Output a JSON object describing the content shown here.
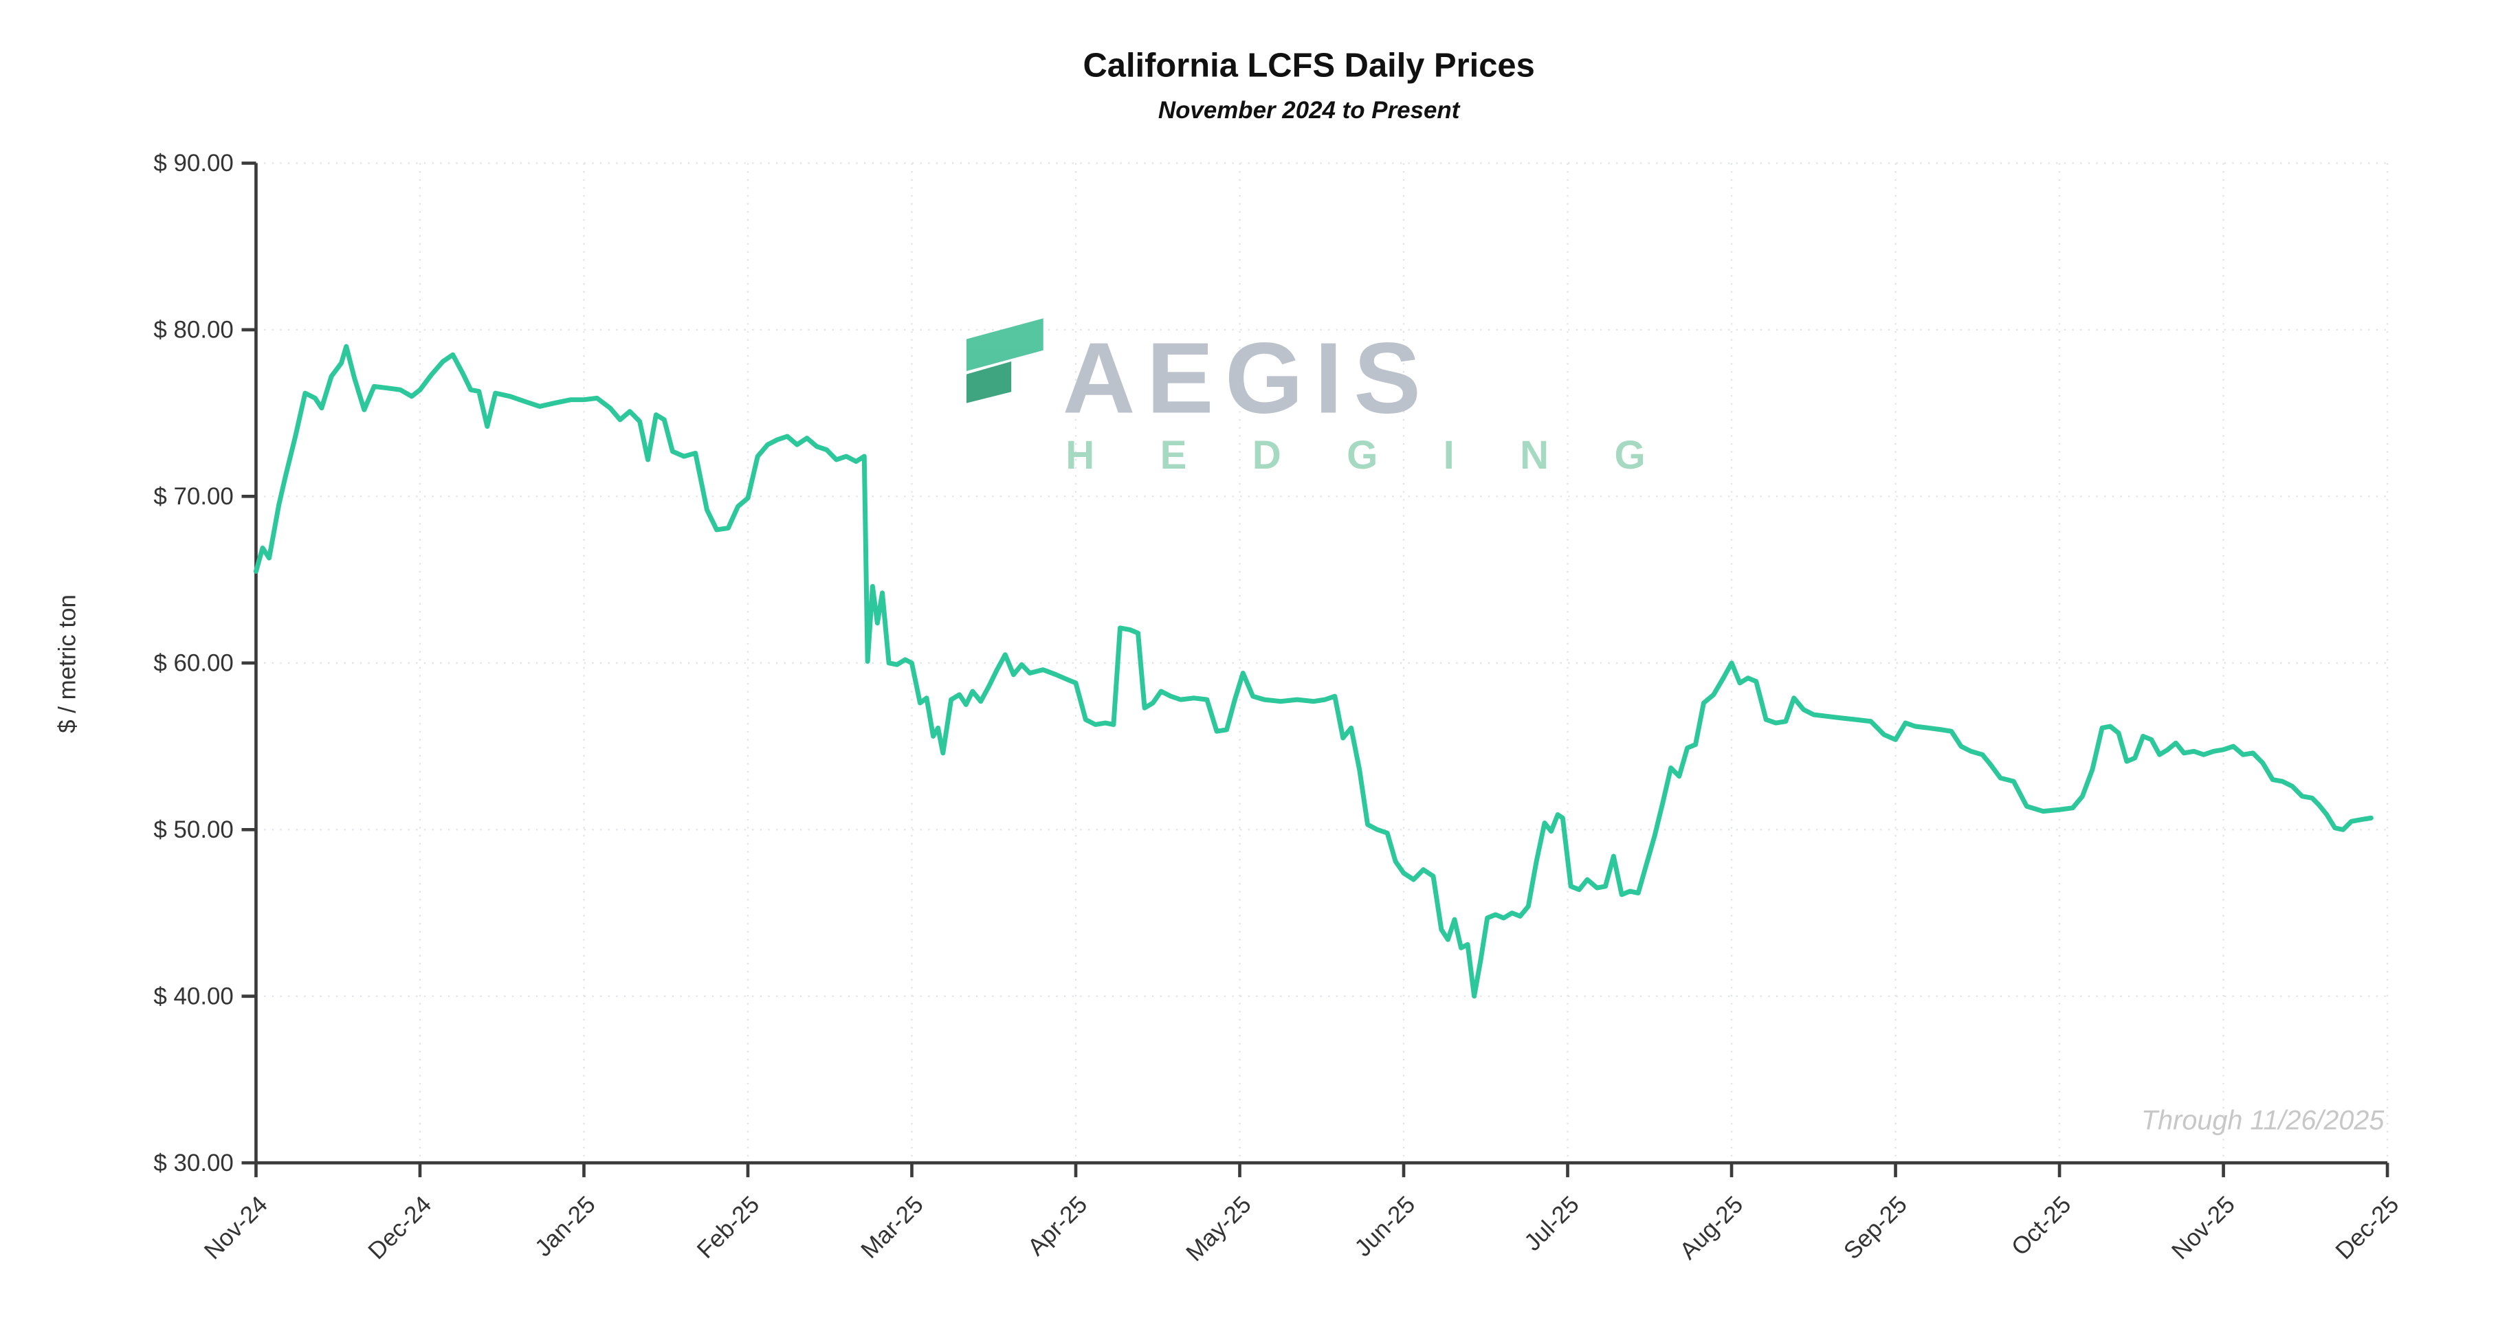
{
  "chart_data": {
    "type": "line",
    "title": "California LCFS Daily Prices",
    "subtitle": "November 2024 to Present",
    "ylabel": "$ / metric ton",
    "xlabel": "",
    "annotation": "Through 11/26/2025",
    "ylim": [
      30,
      90
    ],
    "xlim": [
      0,
      13
    ],
    "grid": true,
    "legend": false,
    "line_color": "#2cc79b",
    "axis_color": "#3b3b3b",
    "grid_color": "#e0e4e9",
    "y_tick_values": [
      30,
      40,
      50,
      60,
      70,
      80,
      90
    ],
    "y_tick_labels": [
      "$ 30.00",
      "$ 40.00",
      "$ 50.00",
      "$ 60.00",
      "$ 70.00",
      "$ 80.00",
      "$ 90.00"
    ],
    "x_tick_labels": [
      "Nov-24",
      "Dec-24",
      "Jan-25",
      "Feb-25",
      "Mar-25",
      "Apr-25",
      "May-25",
      "Jun-25",
      "Jul-25",
      "Aug-25",
      "Sep-25",
      "Oct-25",
      "Nov-25",
      "Dec-25"
    ],
    "series": [
      {
        "name": "LCFS Daily Price",
        "points": [
          [
            0.0,
            65.5
          ],
          [
            0.04,
            66.9
          ],
          [
            0.08,
            66.3
          ],
          [
            0.14,
            69.5
          ],
          [
            0.18,
            71.2
          ],
          [
            0.24,
            73.6
          ],
          [
            0.3,
            76.2
          ],
          [
            0.36,
            75.9
          ],
          [
            0.4,
            75.3
          ],
          [
            0.46,
            77.2
          ],
          [
            0.52,
            78.0
          ],
          [
            0.55,
            79.0
          ],
          [
            0.6,
            77.1
          ],
          [
            0.66,
            75.2
          ],
          [
            0.72,
            76.6
          ],
          [
            0.8,
            76.5
          ],
          [
            0.88,
            76.4
          ],
          [
            0.95,
            76.0
          ],
          [
            1.0,
            76.4
          ],
          [
            1.07,
            77.3
          ],
          [
            1.14,
            78.1
          ],
          [
            1.2,
            78.5
          ],
          [
            1.26,
            77.4
          ],
          [
            1.31,
            76.4
          ],
          [
            1.36,
            76.3
          ],
          [
            1.41,
            74.2
          ],
          [
            1.46,
            76.2
          ],
          [
            1.55,
            76.0
          ],
          [
            1.64,
            75.7
          ],
          [
            1.73,
            75.4
          ],
          [
            1.82,
            75.6
          ],
          [
            1.92,
            75.8
          ],
          [
            2.0,
            75.8
          ],
          [
            2.08,
            75.9
          ],
          [
            2.16,
            75.3
          ],
          [
            2.22,
            74.6
          ],
          [
            2.28,
            75.1
          ],
          [
            2.34,
            74.5
          ],
          [
            2.39,
            72.2
          ],
          [
            2.44,
            74.9
          ],
          [
            2.49,
            74.6
          ],
          [
            2.54,
            72.7
          ],
          [
            2.61,
            72.4
          ],
          [
            2.68,
            72.6
          ],
          [
            2.75,
            69.2
          ],
          [
            2.81,
            68.0
          ],
          [
            2.88,
            68.1
          ],
          [
            2.94,
            69.4
          ],
          [
            3.0,
            69.9
          ],
          [
            3.06,
            72.4
          ],
          [
            3.12,
            73.1
          ],
          [
            3.18,
            73.4
          ],
          [
            3.24,
            73.6
          ],
          [
            3.3,
            73.1
          ],
          [
            3.36,
            73.5
          ],
          [
            3.42,
            73.0
          ],
          [
            3.48,
            72.8
          ],
          [
            3.54,
            72.2
          ],
          [
            3.6,
            72.4
          ],
          [
            3.66,
            72.1
          ],
          [
            3.71,
            72.4
          ],
          [
            3.73,
            60.1
          ],
          [
            3.76,
            64.6
          ],
          [
            3.79,
            62.4
          ],
          [
            3.82,
            64.2
          ],
          [
            3.86,
            60.0
          ],
          [
            3.91,
            59.9
          ],
          [
            3.96,
            60.2
          ],
          [
            4.0,
            60.0
          ],
          [
            4.05,
            57.6
          ],
          [
            4.09,
            57.9
          ],
          [
            4.13,
            55.6
          ],
          [
            4.16,
            56.1
          ],
          [
            4.19,
            54.6
          ],
          [
            4.24,
            57.8
          ],
          [
            4.29,
            58.1
          ],
          [
            4.33,
            57.5
          ],
          [
            4.37,
            58.3
          ],
          [
            4.42,
            57.7
          ],
          [
            4.47,
            58.6
          ],
          [
            4.52,
            59.6
          ],
          [
            4.57,
            60.5
          ],
          [
            4.62,
            59.3
          ],
          [
            4.67,
            59.9
          ],
          [
            4.72,
            59.4
          ],
          [
            4.8,
            59.6
          ],
          [
            4.88,
            59.3
          ],
          [
            4.95,
            59.0
          ],
          [
            5.0,
            58.8
          ],
          [
            5.06,
            56.6
          ],
          [
            5.12,
            56.3
          ],
          [
            5.18,
            56.4
          ],
          [
            5.23,
            56.3
          ],
          [
            5.27,
            62.1
          ],
          [
            5.33,
            62.0
          ],
          [
            5.38,
            61.8
          ],
          [
            5.42,
            57.3
          ],
          [
            5.47,
            57.6
          ],
          [
            5.52,
            58.3
          ],
          [
            5.58,
            58.0
          ],
          [
            5.64,
            57.8
          ],
          [
            5.72,
            57.9
          ],
          [
            5.8,
            57.8
          ],
          [
            5.86,
            55.9
          ],
          [
            5.92,
            56.0
          ],
          [
            5.97,
            57.8
          ],
          [
            6.02,
            59.4
          ],
          [
            6.08,
            58.0
          ],
          [
            6.15,
            57.8
          ],
          [
            6.25,
            57.7
          ],
          [
            6.35,
            57.8
          ],
          [
            6.45,
            57.7
          ],
          [
            6.52,
            57.8
          ],
          [
            6.58,
            58.0
          ],
          [
            6.63,
            55.5
          ],
          [
            6.68,
            56.1
          ],
          [
            6.73,
            53.6
          ],
          [
            6.78,
            50.3
          ],
          [
            6.84,
            50.0
          ],
          [
            6.9,
            49.8
          ],
          [
            6.95,
            48.1
          ],
          [
            7.0,
            47.4
          ],
          [
            7.06,
            47.0
          ],
          [
            7.12,
            47.6
          ],
          [
            7.18,
            47.2
          ],
          [
            7.23,
            44.0
          ],
          [
            7.27,
            43.4
          ],
          [
            7.31,
            44.6
          ],
          [
            7.35,
            42.9
          ],
          [
            7.39,
            43.1
          ],
          [
            7.43,
            40.0
          ],
          [
            7.47,
            42.2
          ],
          [
            7.51,
            44.7
          ],
          [
            7.56,
            44.9
          ],
          [
            7.61,
            44.7
          ],
          [
            7.66,
            45.0
          ],
          [
            7.71,
            44.8
          ],
          [
            7.76,
            45.4
          ],
          [
            7.81,
            48.1
          ],
          [
            7.86,
            50.4
          ],
          [
            7.9,
            49.9
          ],
          [
            7.94,
            50.9
          ],
          [
            7.97,
            50.7
          ],
          [
            8.02,
            46.6
          ],
          [
            8.07,
            46.4
          ],
          [
            8.12,
            47.0
          ],
          [
            8.18,
            46.5
          ],
          [
            8.23,
            46.6
          ],
          [
            8.28,
            48.4
          ],
          [
            8.33,
            46.1
          ],
          [
            8.38,
            46.3
          ],
          [
            8.43,
            46.2
          ],
          [
            8.48,
            47.9
          ],
          [
            8.53,
            49.6
          ],
          [
            8.58,
            51.6
          ],
          [
            8.63,
            53.7
          ],
          [
            8.68,
            53.2
          ],
          [
            8.73,
            54.9
          ],
          [
            8.78,
            55.1
          ],
          [
            8.83,
            57.6
          ],
          [
            8.89,
            58.1
          ],
          [
            8.95,
            59.1
          ],
          [
            9.0,
            60.0
          ],
          [
            9.05,
            58.8
          ],
          [
            9.1,
            59.1
          ],
          [
            9.15,
            58.9
          ],
          [
            9.21,
            56.6
          ],
          [
            9.27,
            56.4
          ],
          [
            9.33,
            56.5
          ],
          [
            9.38,
            57.9
          ],
          [
            9.44,
            57.2
          ],
          [
            9.5,
            56.9
          ],
          [
            9.58,
            56.8
          ],
          [
            9.67,
            56.7
          ],
          [
            9.76,
            56.6
          ],
          [
            9.85,
            56.5
          ],
          [
            9.93,
            55.7
          ],
          [
            10.0,
            55.4
          ],
          [
            10.06,
            56.4
          ],
          [
            10.12,
            56.2
          ],
          [
            10.2,
            56.1
          ],
          [
            10.28,
            56.0
          ],
          [
            10.34,
            55.9
          ],
          [
            10.4,
            55.0
          ],
          [
            10.46,
            54.7
          ],
          [
            10.53,
            54.5
          ],
          [
            10.58,
            53.9
          ],
          [
            10.64,
            53.1
          ],
          [
            10.72,
            52.9
          ],
          [
            10.8,
            51.4
          ],
          [
            10.9,
            51.1
          ],
          [
            11.0,
            51.2
          ],
          [
            11.08,
            51.3
          ],
          [
            11.14,
            52.0
          ],
          [
            11.2,
            53.6
          ],
          [
            11.26,
            56.1
          ],
          [
            11.31,
            56.2
          ],
          [
            11.36,
            55.8
          ],
          [
            11.41,
            54.1
          ],
          [
            11.46,
            54.3
          ],
          [
            11.51,
            55.6
          ],
          [
            11.56,
            55.4
          ],
          [
            11.61,
            54.5
          ],
          [
            11.66,
            54.8
          ],
          [
            11.71,
            55.2
          ],
          [
            11.76,
            54.6
          ],
          [
            11.82,
            54.7
          ],
          [
            11.88,
            54.5
          ],
          [
            11.94,
            54.7
          ],
          [
            12.0,
            54.8
          ],
          [
            12.06,
            55.0
          ],
          [
            12.12,
            54.5
          ],
          [
            12.18,
            54.6
          ],
          [
            12.24,
            54.0
          ],
          [
            12.3,
            53.0
          ],
          [
            12.36,
            52.9
          ],
          [
            12.42,
            52.6
          ],
          [
            12.48,
            52.0
          ],
          [
            12.54,
            51.9
          ],
          [
            12.58,
            51.5
          ],
          [
            12.63,
            50.9
          ],
          [
            12.68,
            50.1
          ],
          [
            12.73,
            50.0
          ],
          [
            12.78,
            50.5
          ],
          [
            12.84,
            50.6
          ],
          [
            12.9,
            50.7
          ]
        ]
      }
    ]
  },
  "watermark": {
    "primary": "AEGIS",
    "secondary": "H E D G I N G",
    "primary_color": "#b6bdc7",
    "secondary_color": "#9fd6bd",
    "logo_color_light": "#47c197",
    "logo_color_dark": "#2f9e77"
  }
}
